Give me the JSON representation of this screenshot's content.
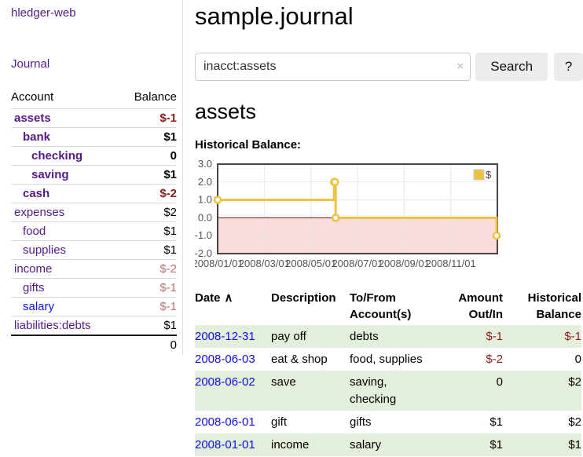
{
  "colors": {
    "purple": "#551a8b",
    "link-blue": "#0f0fe8",
    "negative": "#8b1c1c",
    "negative-muted": "#b87575",
    "stripe-green": "#e4efdb",
    "chart-line": "#edc240",
    "chart-negative-region": "#fadcdc",
    "chart-zero-line": "#8b0000"
  },
  "sidebar": {
    "brand": "hledger-web",
    "journal_link": "Journal",
    "accounts_table": {
      "headers": [
        "Account",
        "Balance"
      ],
      "rows": [
        {
          "name": "assets",
          "balance": "$-1",
          "level": 0,
          "bold": true,
          "link_color": "purple",
          "balance_color": "negative"
        },
        {
          "name": "bank",
          "balance": "$1",
          "level": 1,
          "bold": true,
          "link_color": "purple",
          "balance_color": "normal"
        },
        {
          "name": "checking",
          "balance": "0",
          "level": 2,
          "bold": true,
          "link_color": "purple",
          "balance_color": "normal"
        },
        {
          "name": "saving",
          "balance": "$1",
          "level": 2,
          "bold": true,
          "link_color": "purple",
          "balance_color": "normal"
        },
        {
          "name": "cash",
          "balance": "$-2",
          "level": 1,
          "bold": true,
          "link_color": "purple",
          "balance_color": "negative"
        },
        {
          "name": "expenses",
          "balance": "$2",
          "level": 0,
          "bold": false,
          "link_color": "purple",
          "balance_color": "normal"
        },
        {
          "name": "food",
          "balance": "$1",
          "level": 1,
          "bold": false,
          "link_color": "purple",
          "balance_color": "normal"
        },
        {
          "name": "supplies",
          "balance": "$1",
          "level": 1,
          "bold": false,
          "link_color": "purple",
          "balance_color": "normal"
        },
        {
          "name": "income",
          "balance": "$-2",
          "level": 0,
          "bold": false,
          "link_color": "purple",
          "balance_color": "negative-muted"
        },
        {
          "name": "gifts",
          "balance": "$-1",
          "level": 1,
          "bold": false,
          "link_color": "purple",
          "balance_color": "negative-muted"
        },
        {
          "name": "salary",
          "balance": "$-1",
          "level": 1,
          "bold": false,
          "link_color": "blue",
          "balance_color": "negative-muted"
        },
        {
          "name": "liabilities:debts",
          "balance": "$1",
          "level": 0,
          "bold": false,
          "link_color": "purple",
          "balance_color": "normal"
        }
      ],
      "total": "0"
    }
  },
  "main": {
    "title": "sample.journal",
    "search": {
      "value": "inacct:assets",
      "clear_icon": "×",
      "button_label": "Search",
      "help_label": "?"
    },
    "account_heading": "assets",
    "chart_label": "Historical Balance:"
  },
  "chart_data": {
    "type": "line",
    "step": true,
    "title": "Historical Balance",
    "series": [
      {
        "name": "$",
        "points": [
          [
            "2008-01-01",
            1
          ],
          [
            "2008-06-01",
            2
          ],
          [
            "2008-06-02",
            2
          ],
          [
            "2008-06-03",
            0
          ],
          [
            "2008-12-31",
            -1
          ]
        ]
      }
    ],
    "xlim": [
      "2008-01-01",
      "2009-01-01"
    ],
    "ylim": [
      -2,
      3
    ],
    "yticks": [
      "3.0",
      "2.0",
      "1.0",
      "0.0",
      "-1.0",
      "-2.0"
    ],
    "xticks": [
      {
        "date": "2008-01-01",
        "label": "2008/01/01"
      },
      {
        "date": "2008-03-01",
        "label": "2008/03/01"
      },
      {
        "date": "2008-05-01",
        "label": "2008/05/01"
      },
      {
        "date": "2008-07-01",
        "label": "2008/07/01"
      },
      {
        "date": "2008-09-01",
        "label": "2008/09/01"
      },
      {
        "date": "2008-11-01",
        "label": "2008/11/01"
      }
    ],
    "legend": {
      "label": "$",
      "position": "top-right"
    },
    "grid": true,
    "negative_region": true
  },
  "register_table": {
    "headers": {
      "date": "Date",
      "sort_icon": "∧",
      "description": "Description",
      "account": "To/From Account(s)",
      "amount": "Amount Out/In",
      "balance": "Historical Balance"
    },
    "rows": [
      {
        "date": "2008-12-31",
        "description": "pay off",
        "accounts": "debts",
        "amount": "$-1",
        "amount_style": "negative",
        "balance": "$-1",
        "balance_style": "negative"
      },
      {
        "date": "2008-06-03",
        "description": "eat & shop",
        "accounts": "food, supplies",
        "amount": "$-2",
        "amount_style": "negative",
        "balance": "0",
        "balance_style": "normal"
      },
      {
        "date": "2008-06-02",
        "description": "save",
        "accounts": "saving, checking",
        "amount": "0",
        "amount_style": "normal",
        "balance": "$2",
        "balance_style": "normal"
      },
      {
        "date": "2008-06-01",
        "description": "gift",
        "accounts": "gifts",
        "amount": "$1",
        "amount_style": "normal",
        "balance": "$2",
        "balance_style": "normal"
      },
      {
        "date": "2008-01-01",
        "description": "income",
        "accounts": "salary",
        "amount": "$1",
        "amount_style": "normal",
        "balance": "$1",
        "balance_style": "normal"
      }
    ]
  }
}
